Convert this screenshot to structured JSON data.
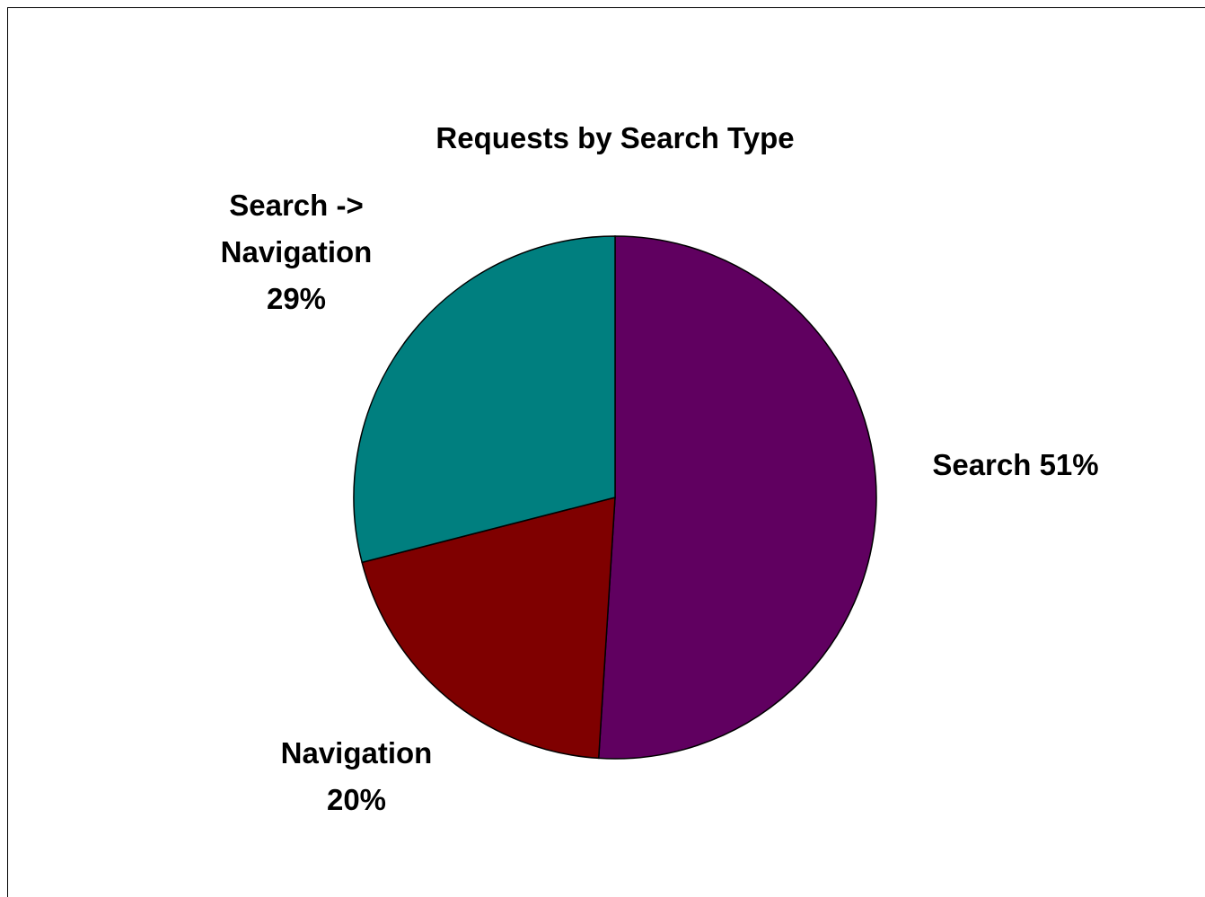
{
  "chart_data": {
    "type": "pie",
    "title": "Requests by Search Type",
    "slices": [
      {
        "name": "Search",
        "value": 51,
        "label_lines": [
          "Search 51%"
        ],
        "color": "#600060"
      },
      {
        "name": "Navigation",
        "value": 20,
        "label_lines": [
          "Navigation",
          "20%"
        ],
        "color": "#7f0000"
      },
      {
        "name": "Search -> Navigation",
        "value": 29,
        "label_lines": [
          "Search ->",
          "Navigation",
          "29%"
        ],
        "color": "#007f7f"
      }
    ],
    "legend": "none"
  }
}
